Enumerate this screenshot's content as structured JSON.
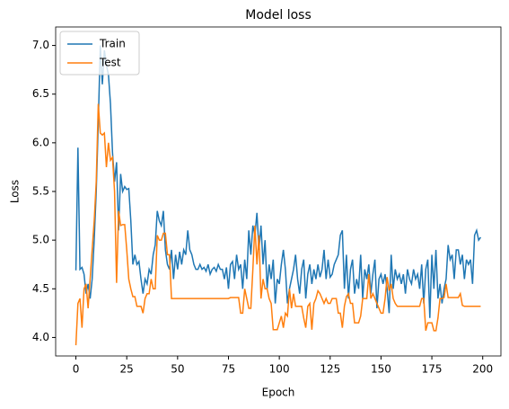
{
  "chart_data": {
    "type": "line",
    "title": "Model loss",
    "x_label": "Epoch",
    "y_label": "Loss",
    "x": [
      0,
      1,
      2,
      3,
      4,
      5,
      6,
      7,
      8,
      9,
      10,
      11,
      12,
      13,
      14,
      15,
      16,
      17,
      18,
      19,
      20,
      21,
      22,
      23,
      24,
      25,
      26,
      27,
      28,
      29,
      30,
      31,
      32,
      33,
      34,
      35,
      36,
      37,
      38,
      39,
      40,
      41,
      42,
      43,
      44,
      45,
      46,
      47,
      48,
      49,
      50,
      51,
      52,
      53,
      54,
      55,
      56,
      57,
      58,
      59,
      60,
      61,
      62,
      63,
      64,
      65,
      66,
      67,
      68,
      69,
      70,
      71,
      72,
      73,
      74,
      75,
      76,
      77,
      78,
      79,
      80,
      81,
      82,
      83,
      84,
      85,
      86,
      87,
      88,
      89,
      90,
      91,
      92,
      93,
      94,
      95,
      96,
      97,
      98,
      99,
      100,
      101,
      102,
      103,
      104,
      105,
      106,
      107,
      108,
      109,
      110,
      111,
      112,
      113,
      114,
      115,
      116,
      117,
      118,
      119,
      120,
      121,
      122,
      123,
      124,
      125,
      126,
      127,
      128,
      129,
      130,
      131,
      132,
      133,
      134,
      135,
      136,
      137,
      138,
      139,
      140,
      141,
      142,
      143,
      144,
      145,
      146,
      147,
      148,
      149,
      150,
      151,
      152,
      153,
      154,
      155,
      156,
      157,
      158,
      159,
      160,
      161,
      162,
      163,
      164,
      165,
      166,
      167,
      168,
      169,
      170,
      171,
      172,
      173,
      174,
      175,
      176,
      177,
      178,
      179,
      180,
      181,
      182,
      183,
      184,
      185,
      186,
      187,
      188,
      189,
      190,
      191,
      192,
      193,
      194,
      195,
      196,
      197,
      198,
      199
    ],
    "series": [
      {
        "name": "Train",
        "color": "#1f77b4",
        "values": [
          4.69,
          5.95,
          4.7,
          4.72,
          4.65,
          4.45,
          4.55,
          4.4,
          4.6,
          5.0,
          5.5,
          6.2,
          7.0,
          6.6,
          6.95,
          6.8,
          6.7,
          6.4,
          5.9,
          5.6,
          5.8,
          5.1,
          5.68,
          5.5,
          5.55,
          5.52,
          5.53,
          5.2,
          4.75,
          4.85,
          4.75,
          4.78,
          4.6,
          4.45,
          4.6,
          4.55,
          4.7,
          4.65,
          4.85,
          4.95,
          5.3,
          5.2,
          5.15,
          5.3,
          4.9,
          4.75,
          4.7,
          4.9,
          4.6,
          4.85,
          4.7,
          4.88,
          4.75,
          4.9,
          4.85,
          5.1,
          4.9,
          4.85,
          4.75,
          4.7,
          4.7,
          4.75,
          4.7,
          4.72,
          4.68,
          4.75,
          4.65,
          4.7,
          4.72,
          4.68,
          4.75,
          4.7,
          4.7,
          4.6,
          4.72,
          4.5,
          4.75,
          4.78,
          4.6,
          4.85,
          4.7,
          4.75,
          4.5,
          4.8,
          4.6,
          5.1,
          4.85,
          5.15,
          5.05,
          5.28,
          4.9,
          5.15,
          4.75,
          5.0,
          4.5,
          4.75,
          4.6,
          4.8,
          4.35,
          4.6,
          4.55,
          4.75,
          4.9,
          4.7,
          4.35,
          4.5,
          4.6,
          4.7,
          4.85,
          4.6,
          4.45,
          4.7,
          4.8,
          4.4,
          4.65,
          4.75,
          4.55,
          4.7,
          4.6,
          4.75,
          4.62,
          4.7,
          4.9,
          4.6,
          4.8,
          4.62,
          4.65,
          4.75,
          4.8,
          4.85,
          5.05,
          5.1,
          4.5,
          4.85,
          4.4,
          4.7,
          4.8,
          4.45,
          4.6,
          4.5,
          4.85,
          4.4,
          4.7,
          4.6,
          4.75,
          4.45,
          4.65,
          4.8,
          4.3,
          4.6,
          4.65,
          4.55,
          4.65,
          4.5,
          4.25,
          4.85,
          4.5,
          4.7,
          4.6,
          4.65,
          4.55,
          4.65,
          4.45,
          4.7,
          4.6,
          4.55,
          4.7,
          4.6,
          4.65,
          4.5,
          4.75,
          4.35,
          4.7,
          4.8,
          4.2,
          4.85,
          4.5,
          4.9,
          4.4,
          4.55,
          4.35,
          4.5,
          4.6,
          4.95,
          4.8,
          4.85,
          4.6,
          4.9,
          4.9,
          4.75,
          4.85,
          4.6,
          4.8,
          4.75,
          4.8,
          4.55,
          5.05,
          5.1,
          5.0,
          5.03
        ]
      },
      {
        "name": "Test",
        "color": "#ff7f0e",
        "values": [
          3.92,
          4.35,
          4.4,
          4.1,
          4.5,
          4.55,
          4.3,
          4.6,
          4.9,
          5.2,
          5.6,
          6.4,
          6.1,
          6.08,
          6.1,
          5.75,
          6.0,
          5.82,
          5.85,
          5.5,
          4.56,
          5.3,
          5.15,
          5.16,
          5.16,
          4.9,
          4.6,
          4.5,
          4.42,
          4.42,
          4.32,
          4.32,
          4.32,
          4.25,
          4.4,
          4.45,
          4.45,
          4.6,
          4.5,
          4.5,
          5.05,
          5.0,
          5.0,
          5.07,
          5.07,
          4.85,
          4.85,
          4.4,
          4.4,
          4.4,
          4.4,
          4.4,
          4.4,
          4.4,
          4.4,
          4.4,
          4.4,
          4.4,
          4.4,
          4.4,
          4.4,
          4.4,
          4.4,
          4.4,
          4.4,
          4.4,
          4.4,
          4.4,
          4.4,
          4.4,
          4.4,
          4.4,
          4.4,
          4.4,
          4.4,
          4.4,
          4.41,
          4.41,
          4.41,
          4.41,
          4.41,
          4.25,
          4.25,
          4.5,
          4.4,
          4.3,
          4.3,
          4.7,
          5.15,
          4.75,
          5.05,
          4.4,
          4.6,
          4.5,
          4.5,
          4.4,
          4.35,
          4.08,
          4.08,
          4.08,
          4.15,
          4.22,
          4.1,
          4.25,
          4.22,
          4.5,
          4.3,
          4.45,
          4.32,
          4.32,
          4.32,
          4.32,
          4.2,
          4.1,
          4.32,
          4.35,
          4.08,
          4.35,
          4.4,
          4.48,
          4.45,
          4.4,
          4.35,
          4.4,
          4.35,
          4.35,
          4.4,
          4.4,
          4.4,
          4.25,
          4.25,
          4.1,
          4.32,
          4.42,
          4.45,
          4.35,
          4.35,
          4.15,
          4.15,
          4.15,
          4.22,
          4.4,
          4.4,
          4.4,
          4.65,
          4.4,
          4.45,
          4.4,
          4.35,
          4.3,
          4.25,
          4.25,
          4.4,
          4.62,
          4.48,
          4.55,
          4.4,
          4.35,
          4.32,
          4.32,
          4.32,
          4.32,
          4.32,
          4.32,
          4.32,
          4.32,
          4.32,
          4.32,
          4.32,
          4.32,
          4.4,
          4.4,
          4.07,
          4.15,
          4.15,
          4.15,
          4.07,
          4.07,
          4.2,
          4.4,
          4.4,
          4.41,
          4.55,
          4.41,
          4.41,
          4.41,
          4.41,
          4.41,
          4.41,
          4.45,
          4.33,
          4.32,
          4.32,
          4.32,
          4.32,
          4.32,
          4.32,
          4.32,
          4.32,
          4.32
        ]
      }
    ],
    "xlim": [
      -9.95,
      208.95
    ],
    "xticks": [
      0,
      25,
      50,
      75,
      100,
      125,
      150,
      175,
      200
    ],
    "ylim": [
      3.81,
      7.19
    ],
    "yticks": [
      {
        "value": 4,
        "label": "4.0"
      },
      4.5,
      {
        "value": 5,
        "label": "5.0"
      },
      5.5,
      {
        "value": 6,
        "label": "6.0"
      },
      6.5,
      {
        "value": 7,
        "label": "7.0"
      }
    ],
    "legend": "upper left"
  }
}
